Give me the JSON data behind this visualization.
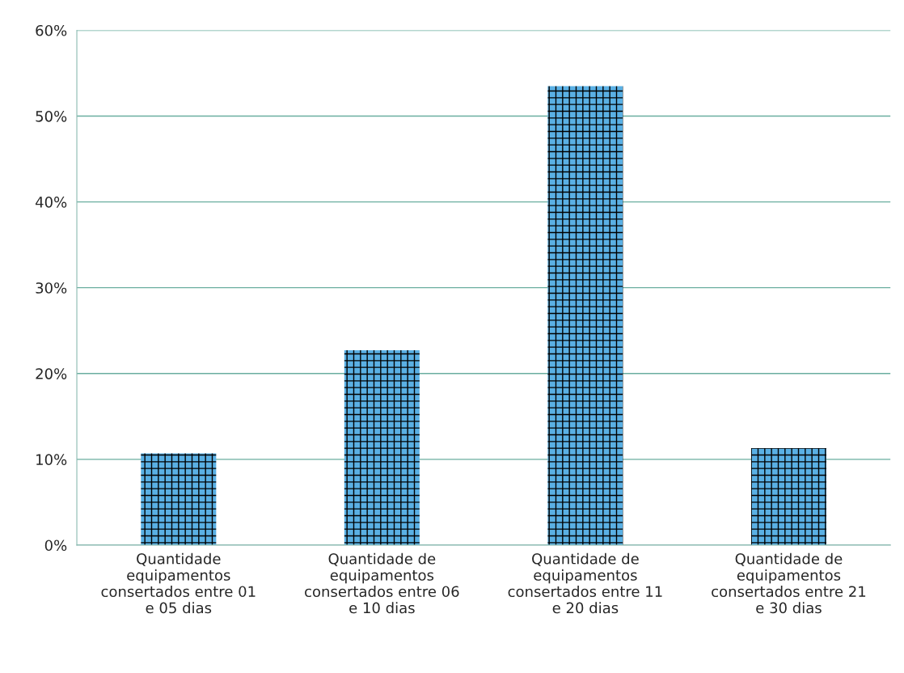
{
  "chart_data": {
    "type": "bar",
    "categories": [
      "Quantidade equipamentos consertados entre 01 e 05 dias",
      "Quantidade de equipamentos consertados entre 06 e 10 dias",
      "Quantidade de equipamentos consertados entre 11 e 20 dias",
      "Quantidade de equipamentos consertados entre 21 e 30 dias"
    ],
    "values": [
      10.7,
      22.7,
      53.5,
      11.3
    ],
    "color": "#5ab0e4",
    "ylim": [
      0,
      60
    ],
    "yticks": [
      {
        "value": 0,
        "label": "0%"
      },
      {
        "value": 10,
        "label": "10%"
      },
      {
        "value": 20,
        "label": "20%"
      },
      {
        "value": 30,
        "label": "30%"
      },
      {
        "value": 40,
        "label": "40%"
      },
      {
        "value": 50,
        "label": "50%"
      },
      {
        "value": 60,
        "label": "60%"
      }
    ],
    "grid": "y"
  }
}
